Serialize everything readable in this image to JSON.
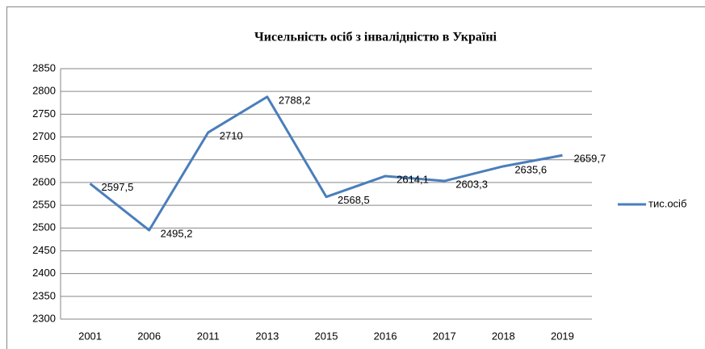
{
  "chart_data": {
    "type": "line",
    "title": "Чисельність осіб з інвалідністю в Україні",
    "categories": [
      "2001",
      "2006",
      "2011",
      "2013",
      "2015",
      "2016",
      "2017",
      "2018",
      "2019"
    ],
    "series": [
      {
        "name": "тис.осіб",
        "color": "#4a7ebb",
        "values": [
          2597.5,
          2495.2,
          2710,
          2788.2,
          2568.5,
          2614.1,
          2603.3,
          2635.6,
          2659.7
        ],
        "value_labels": [
          "2597,5",
          "2495,2",
          "2710",
          "2788,2",
          "2568,5",
          "2614,1",
          "2603,3",
          "2635,6",
          "2659,7"
        ]
      }
    ],
    "ylim": [
      2300,
      2850
    ],
    "yticks": [
      2300,
      2350,
      2400,
      2450,
      2500,
      2550,
      2600,
      2650,
      2700,
      2750,
      2800,
      2850
    ],
    "grid": true,
    "legend": "right"
  }
}
